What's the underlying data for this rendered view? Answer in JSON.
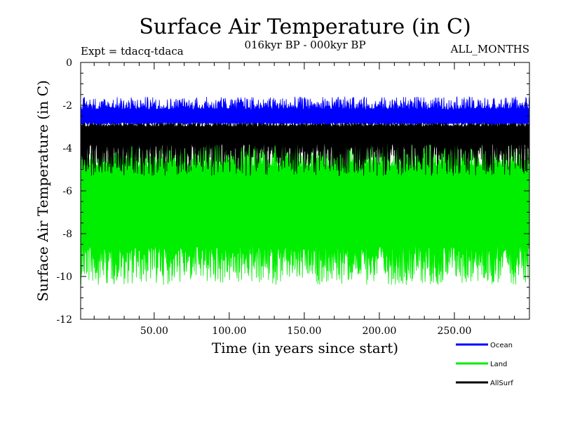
{
  "chart_data": {
    "type": "line",
    "title": "Surface Air Temperature (in C)",
    "subtitle": "016kyr BP - 000kyr BP",
    "left_label": "Expt = tdacq-tdaca",
    "right_label": "ALL_MONTHS",
    "xlabel": "Time (in years since start)",
    "ylabel": "Surface Air Temperature (in C)",
    "xlim": [
      1,
      300
    ],
    "ylim": [
      -12,
      0
    ],
    "x_ticks": [
      50,
      100,
      150,
      200,
      250
    ],
    "x_tick_labels": [
      "50.00",
      "100.00",
      "150.00",
      "200.00",
      "250.00"
    ],
    "y_ticks": [
      0,
      -2,
      -4,
      -6,
      -8,
      -10,
      -12
    ],
    "y_tick_labels": [
      "0",
      "-2",
      "-4",
      "-6",
      "-8",
      "-10",
      "-12"
    ],
    "series": [
      {
        "name": "Land",
        "color": "#00ee00",
        "mean": -6.7,
        "upper": [
          -4.9,
          -3.6
        ],
        "lower": [
          -8.6,
          -10.4
        ]
      },
      {
        "name": "AllSurf",
        "color": "#000000",
        "mean": -3.4,
        "upper": [
          -3.0,
          -2.6
        ],
        "lower": [
          -3.8,
          -5.3
        ]
      },
      {
        "name": "Ocean",
        "color": "#0000ff",
        "mean": -2.5,
        "upper": [
          -2.2,
          -1.6
        ],
        "lower": [
          -2.8,
          -2.9
        ]
      }
    ],
    "legend": [
      {
        "name": "Ocean",
        "color": "#0000ff"
      },
      {
        "name": "Land",
        "color": "#00ee00"
      },
      {
        "name": "AllSurf",
        "color": "#000000"
      }
    ]
  }
}
